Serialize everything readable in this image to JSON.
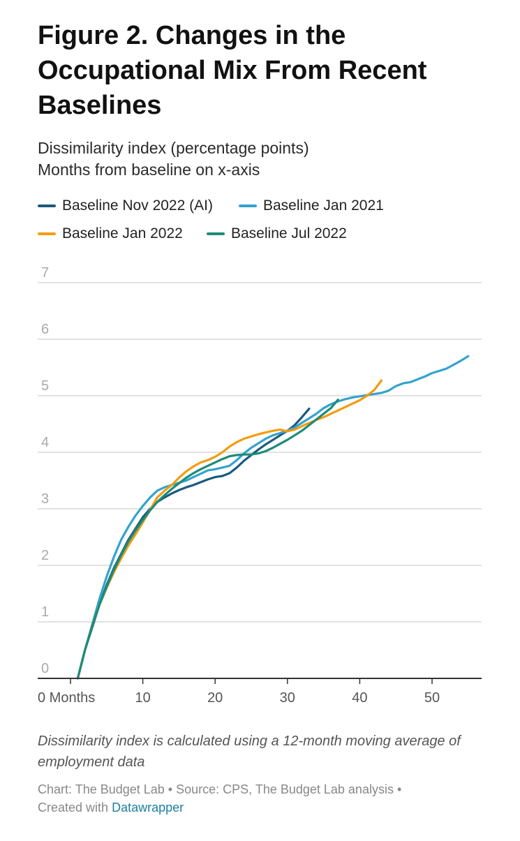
{
  "figure": {
    "title": "Figure 2. Changes in the Occupational Mix From Recent Baselines",
    "subtitle_line1": "Dissimilarity index (percentage points)",
    "subtitle_line2": "Months from baseline on x-axis",
    "note": "Dissimilarity index is calculated using a 12-month moving average of employment data",
    "footer_prefix": "Chart: The Budget Lab • Source: CPS, The Budget Lab analysis •",
    "footer_created": "Created with",
    "footer_link": "Datawrapper"
  },
  "colors": {
    "nov2022": "#1a5a7d",
    "jan2021": "#33a3cd",
    "jan2022": "#f39c12",
    "jul2022": "#1c8c78",
    "grid": "#d9d9d9",
    "axis": "#333333",
    "tick_text": "#555555",
    "ytick_text": "#aaaaaa"
  },
  "chart_data": {
    "type": "line",
    "title": "Figure 2. Changes in the Occupational Mix From Recent Baselines",
    "xlabel": "Months",
    "ylabel": "Dissimilarity index (percentage points)",
    "xlim": [
      0,
      57
    ],
    "ylim": [
      0,
      7
    ],
    "x_ticks": [
      0,
      10,
      20,
      30,
      40,
      50
    ],
    "x_tick_labels": [
      "0 Months",
      "10",
      "20",
      "30",
      "40",
      "50"
    ],
    "y_ticks": [
      0,
      1,
      2,
      3,
      4,
      5,
      6,
      7
    ],
    "y_tick_labels": [
      "0",
      "1",
      "2",
      "3",
      "4",
      "5",
      "6",
      "7"
    ],
    "grid": true,
    "legend_position": "top",
    "series": [
      {
        "name": "Baseline Nov 2022 (AI)",
        "color_key": "nov2022",
        "x": [
          1,
          2,
          3,
          4,
          5,
          6,
          7,
          8,
          9,
          10,
          11,
          12,
          13,
          14,
          15,
          16,
          17,
          18,
          19,
          20,
          21,
          22,
          23,
          24,
          25,
          26,
          27,
          28,
          29,
          30,
          31,
          32,
          33
        ],
        "y": [
          0,
          0.5,
          0.9,
          1.3,
          1.65,
          1.95,
          2.2,
          2.45,
          2.65,
          2.85,
          3.0,
          3.12,
          3.2,
          3.27,
          3.33,
          3.38,
          3.42,
          3.47,
          3.52,
          3.56,
          3.58,
          3.63,
          3.73,
          3.85,
          3.95,
          4.05,
          4.14,
          4.22,
          4.3,
          4.38,
          4.48,
          4.62,
          4.77
        ]
      },
      {
        "name": "Baseline Jan 2021",
        "color_key": "jan2021",
        "x": [
          1,
          2,
          3,
          4,
          5,
          6,
          7,
          8,
          9,
          10,
          11,
          12,
          13,
          14,
          15,
          16,
          17,
          18,
          19,
          20,
          21,
          22,
          23,
          24,
          25,
          26,
          27,
          28,
          29,
          30,
          31,
          32,
          33,
          34,
          35,
          36,
          37,
          38,
          39,
          40,
          41,
          42,
          43,
          44,
          45,
          46,
          47,
          48,
          49,
          50,
          51,
          52,
          53,
          54,
          55
        ],
        "y": [
          0,
          0.5,
          0.95,
          1.4,
          1.8,
          2.15,
          2.45,
          2.68,
          2.88,
          3.05,
          3.2,
          3.32,
          3.38,
          3.42,
          3.46,
          3.5,
          3.56,
          3.62,
          3.68,
          3.7,
          3.73,
          3.76,
          3.86,
          3.98,
          4.08,
          4.16,
          4.24,
          4.3,
          4.34,
          4.38,
          4.44,
          4.52,
          4.6,
          4.68,
          4.78,
          4.85,
          4.9,
          4.94,
          4.97,
          4.99,
          5.01,
          5.03,
          5.05,
          5.09,
          5.17,
          5.22,
          5.24,
          5.29,
          5.34,
          5.4,
          5.44,
          5.48,
          5.55,
          5.62,
          5.7
        ]
      },
      {
        "name": "Baseline Jan 2022",
        "color_key": "jan2022",
        "x": [
          1,
          2,
          3,
          4,
          5,
          6,
          7,
          8,
          9,
          10,
          11,
          12,
          13,
          14,
          15,
          16,
          17,
          18,
          19,
          20,
          21,
          22,
          23,
          24,
          25,
          26,
          27,
          28,
          29,
          30,
          31,
          32,
          33,
          34,
          35,
          36,
          37,
          38,
          39,
          40,
          41,
          42,
          43
        ],
        "y": [
          0,
          0.5,
          0.92,
          1.3,
          1.6,
          1.88,
          2.12,
          2.35,
          2.55,
          2.76,
          2.98,
          3.2,
          3.32,
          3.42,
          3.55,
          3.66,
          3.75,
          3.82,
          3.86,
          3.92,
          4.0,
          4.1,
          4.18,
          4.24,
          4.28,
          4.32,
          4.35,
          4.38,
          4.4,
          4.37,
          4.4,
          4.46,
          4.52,
          4.57,
          4.62,
          4.68,
          4.74,
          4.8,
          4.86,
          4.92,
          5.0,
          5.1,
          5.27
        ]
      },
      {
        "name": "Baseline Jul 2022",
        "color_key": "jul2022",
        "x": [
          1,
          2,
          3,
          4,
          5,
          6,
          7,
          8,
          9,
          10,
          11,
          12,
          13,
          14,
          15,
          16,
          17,
          18,
          19,
          20,
          21,
          22,
          23,
          24,
          25,
          26,
          27,
          28,
          29,
          30,
          31,
          32,
          33,
          34,
          35,
          36,
          37
        ],
        "y": [
          0,
          0.5,
          0.92,
          1.3,
          1.62,
          1.92,
          2.18,
          2.42,
          2.62,
          2.8,
          2.97,
          3.12,
          3.24,
          3.35,
          3.45,
          3.55,
          3.63,
          3.7,
          3.76,
          3.82,
          3.88,
          3.93,
          3.95,
          3.96,
          3.96,
          3.98,
          4.02,
          4.08,
          4.15,
          4.22,
          4.3,
          4.38,
          4.48,
          4.58,
          4.68,
          4.78,
          4.93
        ]
      }
    ]
  }
}
